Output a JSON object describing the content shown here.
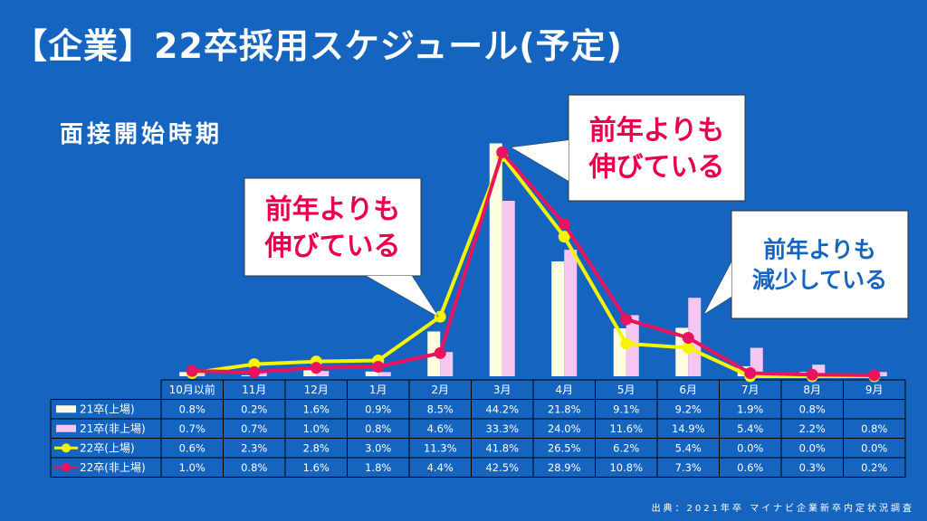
{
  "title": "【企業】22卒採用スケジュール(予定)",
  "subtitle": "面接開始時期",
  "source": "出典：2021年卒 マイナビ企業新卒内定状況調査",
  "callouts": [
    {
      "lines": [
        "前年よりも",
        "伸びている"
      ],
      "color": "#e8004d"
    },
    {
      "lines": [
        "前年よりも",
        "伸びている"
      ],
      "color": "#e8004d"
    },
    {
      "lines": [
        "前年よりも",
        "減少している"
      ],
      "color": "#1565c0"
    }
  ],
  "chart_data": {
    "type": "bar",
    "categories": [
      "10月以前",
      "11月",
      "12月",
      "1月",
      "2月",
      "3月",
      "4月",
      "5月",
      "6月",
      "7月",
      "8月",
      "9月"
    ],
    "series": [
      {
        "name": "21卒(上場)",
        "kind": "bar",
        "color": "#fffde0",
        "values": [
          0.8,
          0.2,
          1.6,
          0.9,
          8.5,
          44.2,
          21.8,
          9.1,
          9.2,
          1.9,
          0.8,
          null
        ],
        "labels": [
          "0.8%",
          "0.2%",
          "1.6%",
          "0.9%",
          "8.5%",
          "44.2%",
          "21.8%",
          "9.1%",
          "9.2%",
          "1.9%",
          "0.8%",
          ""
        ]
      },
      {
        "name": "21卒(非上場)",
        "kind": "bar",
        "color": "#f7c6f0",
        "values": [
          0.7,
          0.7,
          1.0,
          0.8,
          4.6,
          33.3,
          24.0,
          11.6,
          14.9,
          5.4,
          2.2,
          0.8
        ],
        "labels": [
          "0.7%",
          "0.7%",
          "1.0%",
          "0.8%",
          "4.6%",
          "33.3%",
          "24.0%",
          "11.6%",
          "14.9%",
          "5.4%",
          "2.2%",
          "0.8%"
        ]
      },
      {
        "name": "22卒(上場)",
        "kind": "line",
        "color": "#f5f500",
        "values": [
          0.6,
          2.3,
          2.8,
          3.0,
          11.3,
          41.8,
          26.5,
          6.2,
          5.4,
          0.0,
          0.0,
          0.0
        ],
        "labels": [
          "0.6%",
          "2.3%",
          "2.8%",
          "3.0%",
          "11.3%",
          "41.8%",
          "26.5%",
          "6.2%",
          "5.4%",
          "0.0%",
          "0.0%",
          "0.0%"
        ]
      },
      {
        "name": "22卒(非上場)",
        "kind": "line",
        "color": "#e8145f",
        "values": [
          1.0,
          0.8,
          1.6,
          1.8,
          4.4,
          42.5,
          28.9,
          10.8,
          7.3,
          0.6,
          0.3,
          0.2
        ],
        "labels": [
          "1.0%",
          "0.8%",
          "1.6%",
          "1.8%",
          "4.4%",
          "42.5%",
          "28.9%",
          "10.8%",
          "7.3%",
          "0.6%",
          "0.3%",
          "0.2%"
        ]
      }
    ],
    "ylim": [
      0,
      46
    ],
    "grid": false,
    "legend": "table-left"
  }
}
